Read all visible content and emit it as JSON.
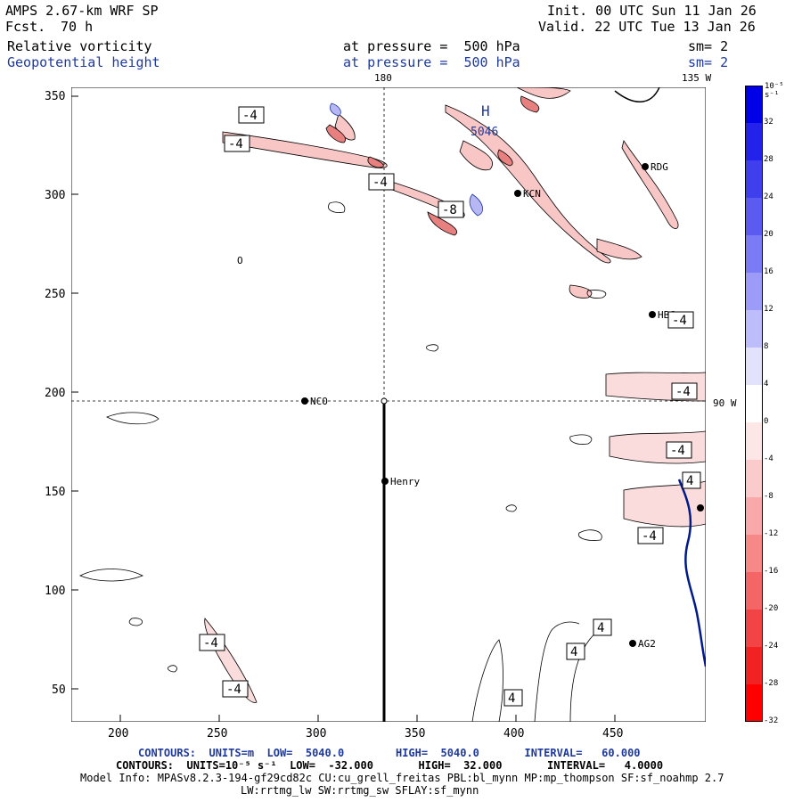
{
  "header": {
    "title": "AMPS 2.67-km WRF SP",
    "fcst_label": "Fcst.",
    "fcst_value": "70 h",
    "init": "Init. 00 UTC Sun 11 Jan 26",
    "valid": "Valid. 22 UTC Tue 13 Jan 26",
    "field1": "Relative vorticity",
    "field2": "Geopotential height",
    "pressure1": "at pressure =  500 hPa",
    "pressure2": "at pressure =  500 hPa",
    "sm1": "sm= 2",
    "sm2": "sm= 2"
  },
  "map": {
    "lon_top_180": "180",
    "lon_top_135w": "135 W",
    "lon_right_90w": "90 W",
    "x_ticks": [
      "200",
      "250",
      "300",
      "350",
      "400",
      "450"
    ],
    "y_ticks": [
      "350",
      "300",
      "250",
      "200",
      "150",
      "100",
      "50"
    ],
    "stations": [
      {
        "name": "NCO"
      },
      {
        "name": "Henry"
      },
      {
        "name": "KCN"
      },
      {
        "name": "RDG"
      },
      {
        "name": "HBC"
      },
      {
        "name": "AG2"
      }
    ],
    "contour_labels": [
      "-4",
      "-4",
      "-4",
      "-8",
      "-4",
      "-4",
      "-4",
      "4",
      "-4",
      "-4",
      "-4",
      "4",
      "4",
      "4",
      "O"
    ],
    "high_label": "H",
    "high_value": "5046"
  },
  "colorbar": {
    "unit": "10⁻⁵ s⁻¹",
    "labels": [
      "32",
      "28",
      "24",
      "20",
      "16",
      "12",
      "8",
      "4",
      "0",
      "-4",
      "-8",
      "-12",
      "-16",
      "-20",
      "-24",
      "-28",
      "-32"
    ],
    "colors": [
      "#0000e6",
      "#2222ea",
      "#3f3fee",
      "#5b5bf2",
      "#7b7bf5",
      "#9c9cf8",
      "#bdbdfb",
      "#e2e2fd",
      "#ffffff",
      "#fde6e6",
      "#fbcaca",
      "#f9a9a9",
      "#f68888",
      "#f46666",
      "#f24444",
      "#f02222",
      "#ff0000"
    ]
  },
  "footer": {
    "line1": "CONTOURS:  UNITS=m  LOW=  5040.0        HIGH=  5040.0       INTERVAL=   60.000",
    "line2": "CONTOURS:  UNITS=10⁻⁵ s⁻¹  LOW=  -32.000       HIGH=  32.000       INTERVAL=   4.0000",
    "line3": "Model Info: MPASv8.2.3-194-gf29cd82c CU:cu_grell_freitas PBL:bl_mynn MP:mp_thompson SF:sf_noahmp 2.7",
    "line4": "LW:rrtmg_lw SW:rrtmg_sw SFLAY:sf_mynn"
  }
}
